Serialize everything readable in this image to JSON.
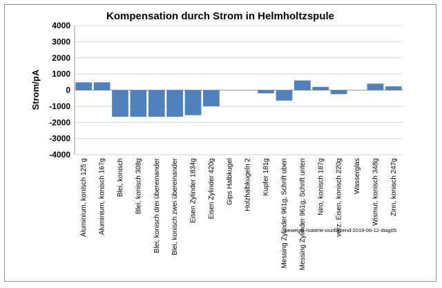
{
  "chart_data": {
    "type": "bar",
    "title": "Kompensation durch Strom in Helmholtzspule",
    "xlabel": "",
    "ylabel": "Strom/pA",
    "ylim": [
      -4000,
      4000
    ],
    "yticks": [
      4000,
      3000,
      2000,
      1000,
      0,
      -1000,
      -2000,
      -3000,
      -4000
    ],
    "grid": "horizontal",
    "bar_color": "#4f81bd",
    "categories": [
      "Aluminium, konisch 125 g",
      "Aluminium, konisch 167g",
      "Blei, konisch",
      "Blei, konisch 308g",
      "Blei, konisch drei übereinander",
      "Blei, konisch zwei übereinander",
      "Eisen Zylinder 1834g",
      "Eisen Zylinder 420g",
      "Gips Halbkugel",
      "Holzhalbkugeln 2",
      "Kupfer 181g",
      "Messing Zylinder 961g, Schrift oben",
      "Messing Zylinder 961g, Schrift unten",
      "Niro, konisch 187g",
      "verz. Eisen, konisch 220g",
      "Wasserglas",
      "Wismut, konisch 348g",
      "Zinn, konisch 247g"
    ],
    "values": [
      480,
      480,
      -1650,
      -1650,
      -1650,
      -1650,
      -1550,
      -1000,
      0,
      0,
      -200,
      -650,
      600,
      200,
      -250,
      0,
      400,
      230
    ],
    "annotation": "bewegte-materie-oszillierend-2019-06-12-diag05"
  }
}
